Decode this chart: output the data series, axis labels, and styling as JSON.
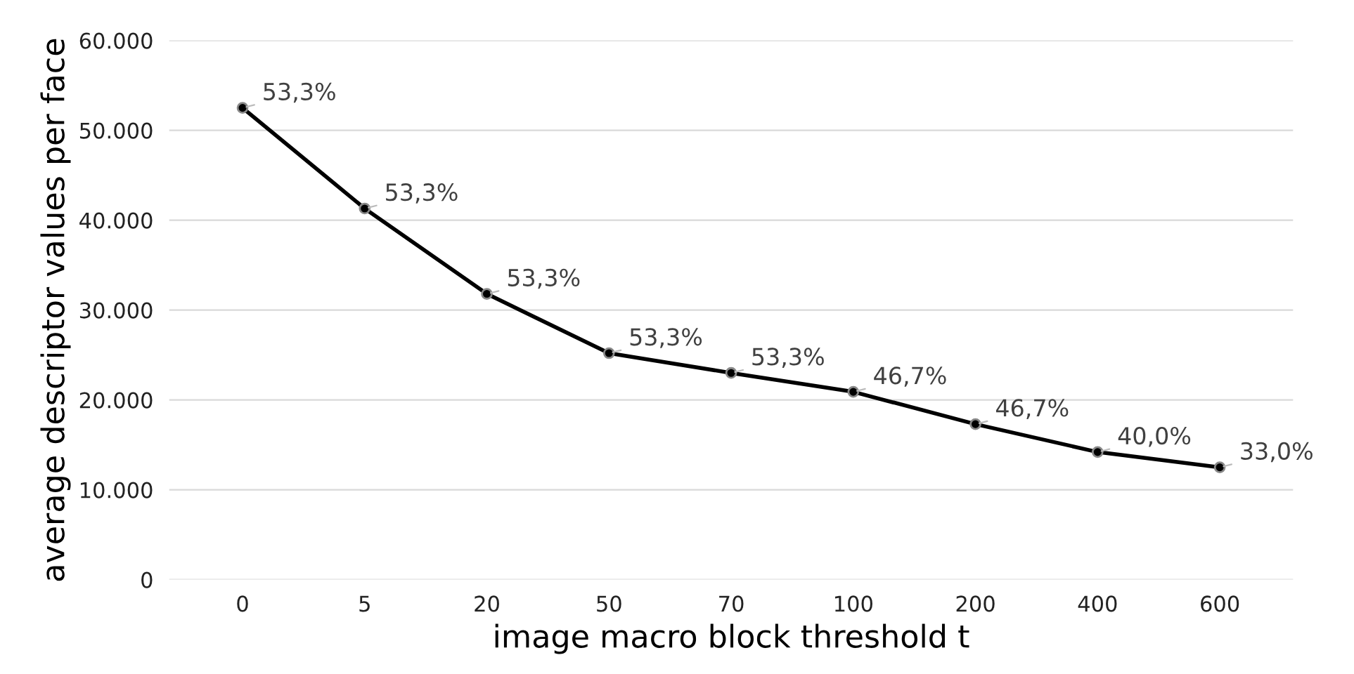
{
  "chart_data": {
    "type": "line",
    "xlabel": "image macro block threshold t",
    "ylabel": "average descriptor values per face",
    "categories": [
      "0",
      "5",
      "20",
      "50",
      "70",
      "100",
      "200",
      "400",
      "600"
    ],
    "series": [
      {
        "color": "#000000",
        "values": [
          52500,
          41300,
          31800,
          25200,
          23000,
          20900,
          17300,
          14200,
          12500
        ]
      }
    ],
    "annotations": [
      {
        "text": "53,3%",
        "x": "0",
        "y": 52500
      },
      {
        "text": "53,3%",
        "x": "5",
        "y": 41300
      },
      {
        "text": "53,3%",
        "x": "20",
        "y": 31800
      },
      {
        "text": "53,3%",
        "x": "50",
        "y": 25200
      },
      {
        "text": "53,3%",
        "x": "70",
        "y": 23000
      },
      {
        "text": "46,7%",
        "x": "100",
        "y": 20900
      },
      {
        "text": "46,7%",
        "x": "200",
        "y": 17300
      },
      {
        "text": "40,0%",
        "x": "400",
        "y": 14200
      },
      {
        "text": "33,0%",
        "x": "600",
        "y": 12500
      }
    ],
    "ylim": [
      0,
      60000
    ],
    "yticks": [
      {
        "value": 0,
        "label": "0"
      },
      {
        "value": 10000,
        "label": "10.000"
      },
      {
        "value": 20000,
        "label": "20.000"
      },
      {
        "value": 30000,
        "label": "30.000"
      },
      {
        "value": 40000,
        "label": "40.000"
      },
      {
        "value": 50000,
        "label": "50.000"
      },
      {
        "value": 60000,
        "label": "60.000"
      }
    ],
    "grid": "y",
    "marker": "circle",
    "line_style": "solid"
  }
}
